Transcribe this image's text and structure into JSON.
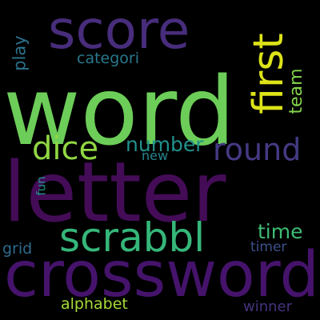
{
  "cloud": {
    "background": "#000000",
    "words": [
      {
        "text": "word",
        "color": "#6dcd59",
        "orientation": "horizontal"
      },
      {
        "text": "letter",
        "color": "#440c57",
        "orientation": "horizontal"
      },
      {
        "text": "crossword",
        "color": "#45136b",
        "orientation": "horizontal"
      },
      {
        "text": "score",
        "color": "#472d7b",
        "orientation": "horizontal"
      },
      {
        "text": "first",
        "color": "#dde318",
        "orientation": "vertical"
      },
      {
        "text": "scrabbl",
        "color": "#35b779",
        "orientation": "horizontal"
      },
      {
        "text": "dice",
        "color": "#90d743",
        "orientation": "horizontal"
      },
      {
        "text": "round",
        "color": "#443a83",
        "orientation": "horizontal"
      },
      {
        "text": "number",
        "color": "#21918c",
        "orientation": "horizontal"
      },
      {
        "text": "time",
        "color": "#3dbc74",
        "orientation": "horizontal"
      },
      {
        "text": "categori",
        "color": "#2a788e",
        "orientation": "horizontal"
      },
      {
        "text": "team",
        "color": "#84d44b",
        "orientation": "vertical"
      },
      {
        "text": "play",
        "color": "#2c728e",
        "orientation": "vertical"
      },
      {
        "text": "new",
        "color": "#25848e",
        "orientation": "horizontal"
      },
      {
        "text": "fun",
        "color": "#21918c",
        "orientation": "vertical"
      },
      {
        "text": "grid",
        "color": "#2f6b8e",
        "orientation": "horizontal"
      },
      {
        "text": "timer",
        "color": "#3b518b",
        "orientation": "horizontal"
      },
      {
        "text": "alphabet",
        "color": "#a5db36",
        "orientation": "horizontal"
      },
      {
        "text": "winner",
        "color": "#46327e",
        "orientation": "horizontal"
      }
    ]
  }
}
